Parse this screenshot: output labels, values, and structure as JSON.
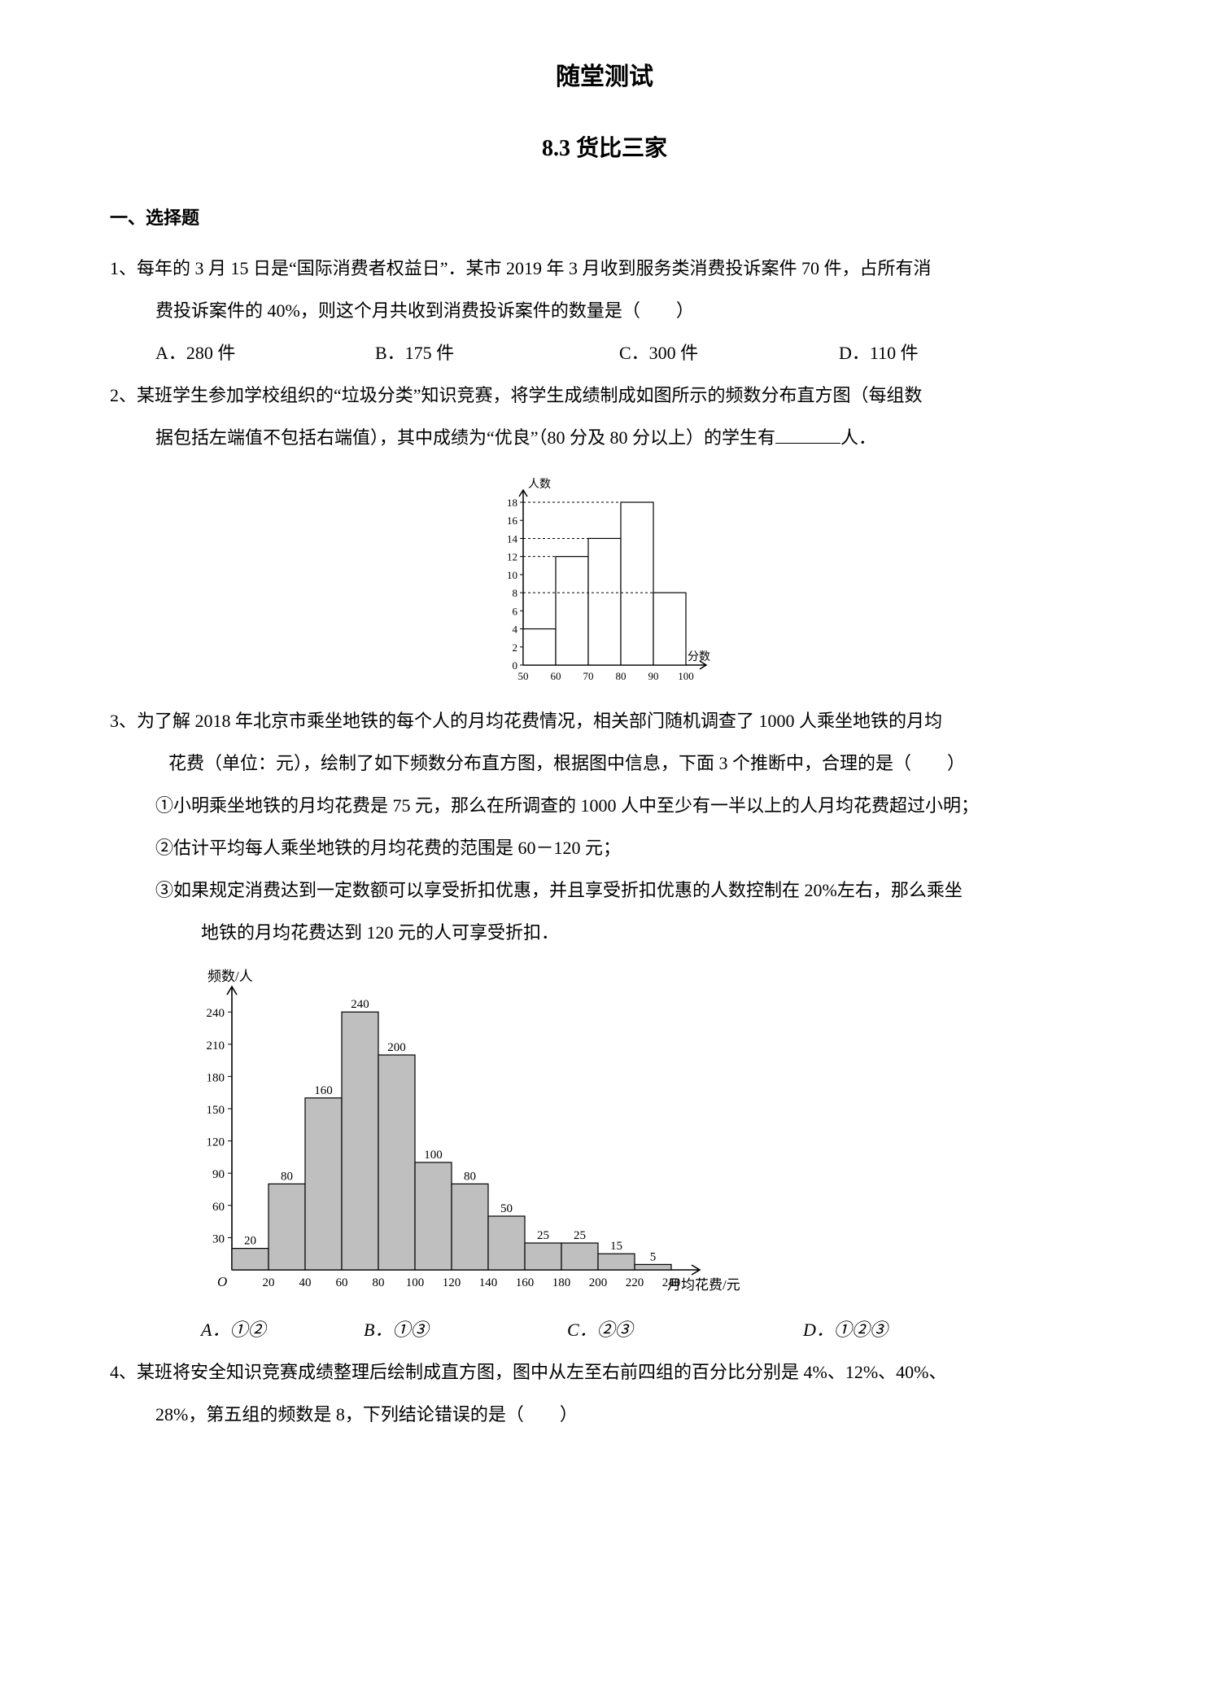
{
  "titles": {
    "main": "随堂测试",
    "sub": "8.3 货比三家"
  },
  "section1": "一、选择题",
  "q1": {
    "line1": "1、每年的 3 月 15 日是“国际消费者权益日”．某市 2019 年 3 月收到服务类消费投诉案件 70 件，占所有消",
    "line2": "费投诉案件的 40%，则这个月共收到消费投诉案件的数量是（　　）",
    "options": {
      "a": "A．280 件",
      "b": "B．175 件",
      "c": "C．300 件",
      "d": "D．110 件"
    }
  },
  "q2": {
    "line1": "2、某班学生参加学校组织的“垃圾分类”知识竞赛，将学生成绩制成如图所示的频数分布直方图（每组数",
    "line2_pre": "据包括左端值不包括右端值），其中成绩为“优良”（80 分及 80 分以上）的学生有",
    "line2_post": "人．",
    "chart": {
      "type": "histogram",
      "y_label": "人数",
      "x_label": "分数",
      "y_ticks": [
        0,
        2,
        4,
        6,
        8,
        10,
        12,
        14,
        16,
        18
      ],
      "x_ticks": [
        50,
        60,
        70,
        80,
        90,
        100
      ],
      "bars": [
        {
          "range": "50-60",
          "value": 4
        },
        {
          "range": "60-70",
          "value": 12
        },
        {
          "range": "70-80",
          "value": 14
        },
        {
          "range": "80-90",
          "value": 18
        },
        {
          "range": "90-100",
          "value": 8
        }
      ],
      "axis_color": "#000000",
      "bar_fill": "#ffffff",
      "bar_stroke": "#000000",
      "background": "#ffffff",
      "label_fontsize": 14,
      "tick_fontsize": 13
    }
  },
  "q3": {
    "line1": "3、为了解 2018 年北京市乘坐地铁的每个人的月均花费情况，相关部门随机调查了 1000 人乘坐地铁的月均",
    "line2": "花费（单位：元），绘制了如下频数分布直方图，根据图中信息，下面 3 个推断中，合理的是（　　）",
    "stmt1": "①小明乘坐地铁的月均花费是 75 元，那么在所调查的 1000 人中至少有一半以上的人月均花费超过小明；",
    "stmt2": "②估计平均每人乘坐地铁的月均花费的范围是 60－120 元；",
    "stmt3a": "③如果规定消费达到一定数额可以享受折扣优惠，并且享受折扣优惠的人数控制在 20%左右，那么乘坐",
    "stmt3b": "地铁的月均花费达到 120 元的人可享受折扣．",
    "chart": {
      "type": "histogram",
      "y_label": "频数/人",
      "x_label": "月均花费/元",
      "y_ticks": [
        30,
        60,
        90,
        120,
        150,
        180,
        210,
        240
      ],
      "x_ticks": [
        20,
        40,
        60,
        80,
        100,
        120,
        140,
        160,
        180,
        200,
        220,
        240
      ],
      "bars": [
        {
          "x": "0-20",
          "value": 20
        },
        {
          "x": "20-40",
          "value": 80
        },
        {
          "x": "40-60",
          "value": 160
        },
        {
          "x": "60-80",
          "value": 240
        },
        {
          "x": "80-100",
          "value": 200
        },
        {
          "x": "100-120",
          "value": 100
        },
        {
          "x": "120-140",
          "value": 80
        },
        {
          "x": "140-160",
          "value": 50
        },
        {
          "x": "160-180",
          "value": 25
        },
        {
          "x": "180-200",
          "value": 25
        },
        {
          "x": "200-220",
          "value": 15
        },
        {
          "x": "220-240",
          "value": 5
        }
      ],
      "axis_color": "#000000",
      "bar_fill": "#bfbfbf",
      "bar_stroke": "#000000",
      "background": "#ffffff",
      "label_fontsize": 17,
      "tick_fontsize": 15,
      "show_bar_values": true
    },
    "options": {
      "a": "A．①②",
      "b": "B．①③",
      "c": "C．②③",
      "d": "D．①②③"
    }
  },
  "q4": {
    "line1": "4、某班将安全知识竞赛成绩整理后绘制成直方图，图中从左至右前四组的百分比分别是 4%、12%、40%、",
    "line2": "28%，第五组的频数是 8，下列结论错误的是（　　）"
  }
}
